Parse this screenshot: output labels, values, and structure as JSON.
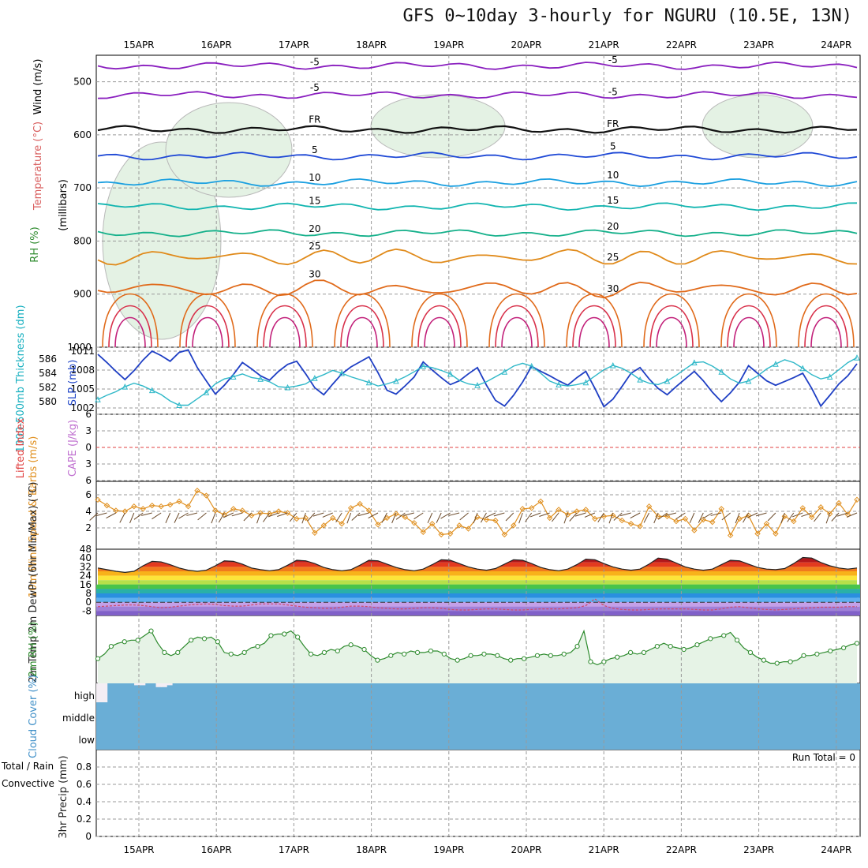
{
  "title": "GFS 0~10day 3-hourly for NGURU (10.5E, 13N)",
  "chart_data": {
    "type": "line",
    "dates": [
      "15APR",
      "16APR",
      "17APR",
      "18APR",
      "19APR",
      "20APR",
      "21APR",
      "22APR",
      "23APR",
      "24APR"
    ],
    "x_unit": "days",
    "panels": {
      "upper_air": {
        "ylabel_parts": [
          {
            "text": "Wind (m/s)",
            "color": "#000000"
          },
          {
            "text": "Temperature (°C)",
            "color": "#d95f5f"
          },
          {
            "text": "(millibars)",
            "color": "#000000"
          },
          {
            "text": "RH (%)",
            "color": "#2e8b2e"
          }
        ],
        "y_ticks": [
          500,
          600,
          700,
          800,
          900,
          1000
        ],
        "ylim": [
          450,
          1000
        ],
        "isotherms": [
          {
            "label": "-5",
            "color": "#8a1fbf",
            "base": 470
          },
          {
            "label": "-5",
            "color": "#8a1fbf",
            "base": 525
          },
          {
            "label": "FR",
            "color": "#111111",
            "base": 590
          },
          {
            "label": "5",
            "color": "#1f49d6",
            "base": 640
          },
          {
            "label": "10",
            "color": "#1a9fe0",
            "base": 690
          },
          {
            "label": "15",
            "color": "#12b5b0",
            "base": 735
          },
          {
            "label": "20",
            "color": "#14b08a",
            "base": 785
          },
          {
            "label": "25",
            "color": "#e08a1a",
            "base": 830
          },
          {
            "label": "30",
            "color": "#e06a1a",
            "base": 890
          }
        ]
      },
      "slp_thickness": {
        "ylabel_left": "1000-500mb Thickness (dm)",
        "ylabel_right": "SLP (mb)",
        "left_ticks": [
          580,
          582,
          584,
          586
        ],
        "right_ticks": [
          1002,
          1005,
          1008,
          1011
        ],
        "slp": [
          1010.5,
          1009.2,
          1007.8,
          1006.5,
          1007.9,
          1009.6,
          1011.0,
          1010.3,
          1009.4,
          1010.8,
          1011.2,
          1008.4,
          1006.3,
          1004.2,
          1005.6,
          1007.3,
          1009.2,
          1008.2,
          1007.1,
          1006.4,
          1007.8,
          1008.9,
          1009.4,
          1007.4,
          1005.2,
          1004.1,
          1005.8,
          1007.4,
          1008.5,
          1009.3,
          1010.1,
          1007.6,
          1004.8,
          1004.2,
          1005.5,
          1006.9,
          1009.3,
          1008.0,
          1006.8,
          1005.7,
          1006.3,
          1007.4,
          1008.4,
          1005.6,
          1003.2,
          1002.3,
          1004.0,
          1006.1,
          1008.6,
          1007.8,
          1007.1,
          1006.3,
          1005.6,
          1006.8,
          1007.8,
          1005.1,
          1002.2,
          1003.4,
          1005.4,
          1007.5,
          1008.4,
          1006.6,
          1005.1,
          1004.1,
          1005.4,
          1006.6,
          1007.8,
          1006.3,
          1004.5,
          1003.0,
          1004.4,
          1006.1,
          1008.7,
          1007.5,
          1006.3,
          1005.6,
          1006.2,
          1006.8,
          1007.5,
          1005.1,
          1002.3,
          1004.0,
          1005.8,
          1007.1,
          1009.0
        ],
        "thickness": [
          580.3,
          580.9,
          581.4,
          582.1,
          582.6,
          582.2,
          581.6,
          581.0,
          580.1,
          579.5,
          579.5,
          580.4,
          581.3,
          582.5,
          583.2,
          583.5,
          583.9,
          583.4,
          583.2,
          582.8,
          582.1,
          582.0,
          582.2,
          582.5,
          583.3,
          583.8,
          584.4,
          584.0,
          583.5,
          583.1,
          582.7,
          582.2,
          582.5,
          582.9,
          583.5,
          584.2,
          585.0,
          584.8,
          584.4,
          583.9,
          583.0,
          582.5,
          582.3,
          582.8,
          583.5,
          584.2,
          585.0,
          585.4,
          585.0,
          584.0,
          582.9,
          582.4,
          582.2,
          582.4,
          582.7,
          583.6,
          584.5,
          585.1,
          584.7,
          584.0,
          583.1,
          582.6,
          582.4,
          582.9,
          583.7,
          584.6,
          585.5,
          585.6,
          585.0,
          584.2,
          583.2,
          582.6,
          582.9,
          583.6,
          584.6,
          585.3,
          585.9,
          585.5,
          584.7,
          583.8,
          583.2,
          583.5,
          584.5,
          585.5,
          586.2
        ]
      },
      "instability": {
        "ylabel_left": "Lifted Index",
        "ylabel_right": "CAPE (J/kg)",
        "ticks": [
          -6,
          -3,
          0,
          3,
          6
        ]
      },
      "wind10m": {
        "ylabel": "10m Wind Speed & Barbs (m/s)",
        "ticks": [
          2,
          4,
          6
        ],
        "speed": [
          5.4,
          4.7,
          4.1,
          4.0,
          4.6,
          4.3,
          4.7,
          4.6,
          4.8,
          5.2,
          4.6,
          6.5,
          5.9,
          4.1,
          3.6,
          4.3,
          4.1,
          3.5,
          3.8,
          3.7,
          4.0,
          3.8,
          3.1,
          3.2,
          1.4,
          2.3,
          3.2,
          2.5,
          4.4,
          4.9,
          4.1,
          2.4,
          3.2,
          3.7,
          3.3,
          2.6,
          1.5,
          2.5,
          1.2,
          1.3,
          2.3,
          1.9,
          3.3,
          3.0,
          2.9,
          1.2,
          2.3,
          4.3,
          4.4,
          5.2,
          3.2,
          4.2,
          3.6,
          4.0,
          4.2,
          3.1,
          3.4,
          3.5,
          2.9,
          2.5,
          2.2,
          4.6,
          3.4,
          3.4,
          2.8,
          3.1,
          1.7,
          3.0,
          2.7,
          4.3,
          1.1,
          3.1,
          3.5,
          1.3,
          2.5,
          1.3,
          3.4,
          2.8,
          4.4,
          3.3,
          4.5,
          3.7,
          5.0,
          3.6,
          5.4
        ]
      },
      "temp2m": {
        "ylabel": "2m Temp 2m DewPt (6hr Min/Max) (°C)",
        "ticks": [
          48,
          40,
          32,
          24,
          16,
          8,
          0,
          -8
        ],
        "temp": [
          31,
          29.5,
          28,
          27,
          28,
          33,
          37,
          36.5,
          34,
          31,
          29,
          28,
          29,
          33,
          37.5,
          37,
          34.5,
          31,
          29.5,
          28.5,
          29.5,
          33.5,
          38,
          37.5,
          35,
          31.5,
          29.5,
          28.5,
          29.5,
          33.5,
          38,
          37.5,
          34.5,
          31.5,
          29.5,
          28.5,
          30,
          34,
          38.5,
          38,
          35,
          32,
          30,
          29,
          30.5,
          34.5,
          38.5,
          38,
          35,
          31.5,
          29.5,
          28.5,
          30,
          34,
          39,
          38.5,
          35,
          32,
          30,
          29,
          30,
          34.5,
          40,
          39,
          35.5,
          32,
          30,
          29,
          30,
          34,
          38,
          37.5,
          34.5,
          31.5,
          30,
          29.5,
          30.5,
          35,
          40.5,
          40,
          36,
          33,
          31,
          30,
          31
        ],
        "dewpoint": [
          -4,
          -3.5,
          -3,
          -2.5,
          -2.5,
          -3,
          -4,
          -5,
          -4.5,
          -3.5,
          -2.5,
          -2,
          -1.5,
          -2,
          -3,
          -3.5,
          -3.5,
          -2.5,
          -1.5,
          -1.5,
          -1.5,
          -2.5,
          -3.5,
          -4.5,
          -5,
          -5.5,
          -5.5,
          -4.5,
          -3.5,
          -3.5,
          -4,
          -5,
          -5.5,
          -6,
          -6,
          -5.5,
          -5,
          -5,
          -5.5,
          -6.5,
          -7,
          -7,
          -6.5,
          -6,
          -6,
          -6.5,
          -7,
          -7,
          -6.5,
          -6,
          -6,
          -6,
          -5.5,
          -5,
          -3,
          3,
          -3,
          -5.5,
          -6.5,
          -7,
          -7,
          -6.5,
          -6,
          -6,
          -6,
          -6,
          -6.5,
          -7,
          -7,
          -6,
          -4.5,
          -4,
          -5,
          -6,
          -6.5,
          -7,
          -6.5,
          -6,
          -5.5,
          -5,
          -4.5,
          -4.5,
          -4.5,
          -4,
          -4
        ]
      },
      "rh2m": {
        "ylabel": "2m RH (%)",
        "ylim": [
          0,
          40
        ],
        "values": [
          14,
          17,
          22,
          24,
          25,
          26,
          26,
          29,
          32,
          24,
          18,
          16,
          18,
          22,
          26,
          28,
          27,
          28,
          25,
          18,
          17,
          16,
          18,
          21,
          22,
          24,
          29,
          30,
          30,
          32,
          28,
          22,
          17,
          16,
          18,
          20,
          19,
          22,
          23,
          22,
          20,
          16,
          13,
          14,
          16,
          18,
          17,
          19,
          18,
          18,
          19,
          19,
          17,
          14,
          13,
          14,
          16,
          16,
          17,
          17,
          16,
          14,
          13,
          14,
          14,
          15,
          16,
          17,
          16,
          16,
          17,
          18,
          22,
          32,
          12,
          10,
          12,
          14,
          15,
          16,
          18,
          17,
          18,
          20,
          22,
          24,
          22,
          21,
          20,
          21,
          23,
          25,
          27,
          28,
          29,
          31,
          26,
          21,
          18,
          15,
          13,
          11,
          11,
          12,
          12,
          13,
          16,
          16,
          17,
          18,
          19,
          20,
          21,
          23,
          24
        ]
      },
      "cloud": {
        "ylabel": "Cloud Cover (%)",
        "levels": [
          "high",
          "middle",
          "low"
        ],
        "high": [
          100,
          100,
          0,
          0,
          0,
          0,
          0,
          10,
          10,
          0,
          0,
          20,
          20,
          10,
          0,
          0,
          0,
          0,
          0,
          0,
          0,
          0,
          0,
          0,
          0,
          0,
          0,
          0,
          0,
          0,
          0,
          0,
          0,
          0,
          0,
          0,
          0,
          0,
          0,
          0,
          0,
          0,
          0,
          0,
          0,
          0,
          0,
          0,
          0,
          0,
          0,
          0,
          0,
          0,
          0,
          0,
          0,
          0,
          0,
          0,
          0,
          0,
          0,
          0,
          0,
          0,
          0,
          0,
          0,
          0,
          0,
          0,
          0,
          0,
          0,
          0,
          0,
          0,
          0,
          0,
          0,
          0,
          0,
          0,
          0,
          0,
          0,
          0,
          0,
          0,
          0,
          0,
          0,
          0,
          0,
          0,
          0,
          0,
          0,
          0,
          0,
          0,
          0,
          0,
          0,
          0,
          0,
          0,
          0,
          0,
          0,
          0,
          0,
          0,
          0,
          0,
          0,
          0,
          0,
          0,
          0,
          0,
          0,
          0,
          0,
          0,
          0,
          0,
          0,
          0,
          0,
          0,
          0,
          0,
          0,
          0,
          0,
          0,
          0,
          0,
          0
        ],
        "middle": 100,
        "low": 100
      },
      "precip": {
        "ylabel": "3hr Precip (mm)",
        "ylabel_extra": [
          "Total / Rain",
          "Convective"
        ],
        "ticks": [
          0,
          0.2,
          0.4,
          0.6,
          0.8
        ],
        "run_total": "Run Total = 0"
      }
    }
  }
}
